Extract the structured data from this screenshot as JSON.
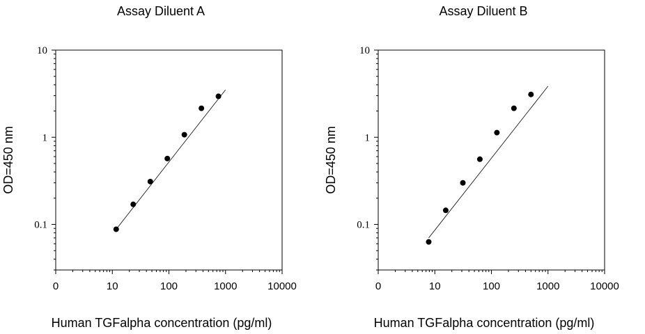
{
  "chart_data": [
    {
      "type": "scatter",
      "title": "Assay Diluent A",
      "xlabel": "Human TGFalpha concentration (pg/ml)",
      "ylabel": "OD=450 nm",
      "x_scale": "log",
      "y_scale": "log",
      "xlim": [
        1,
        10000
      ],
      "ylim": [
        0.03,
        10
      ],
      "x_ticks": [
        "0",
        "10",
        "100",
        "1000",
        "10000"
      ],
      "y_ticks": [
        "0.1",
        "1",
        "10"
      ],
      "grid": false,
      "series": [
        {
          "x": [
            11.7,
            23.4,
            46.9,
            93.8,
            187.5,
            375,
            750
          ],
          "y": [
            0.088,
            0.17,
            0.31,
            0.57,
            1.07,
            2.15,
            2.95
          ]
        }
      ],
      "fit_line": {
        "x": [
          11.7,
          1000
        ],
        "y": [
          0.088,
          3.5
        ]
      }
    },
    {
      "type": "scatter",
      "title": "Assay Diluent B",
      "xlabel": "Human TGFalpha concentration (pg/ml)",
      "ylabel": "OD=450 nm",
      "x_scale": "log",
      "y_scale": "log",
      "xlim": [
        1,
        10000
      ],
      "ylim": [
        0.03,
        10
      ],
      "x_ticks": [
        "0",
        "10",
        "100",
        "1000",
        "10000"
      ],
      "y_ticks": [
        "0.1",
        "1",
        "10"
      ],
      "grid": false,
      "series": [
        {
          "x": [
            7.8,
            15.6,
            31.3,
            62.5,
            125,
            250,
            500
          ],
          "y": [
            0.063,
            0.145,
            0.3,
            0.56,
            1.13,
            2.15,
            3.1
          ]
        }
      ],
      "fit_line": {
        "x": [
          7.8,
          1000
        ],
        "y": [
          0.07,
          3.85
        ]
      }
    }
  ]
}
